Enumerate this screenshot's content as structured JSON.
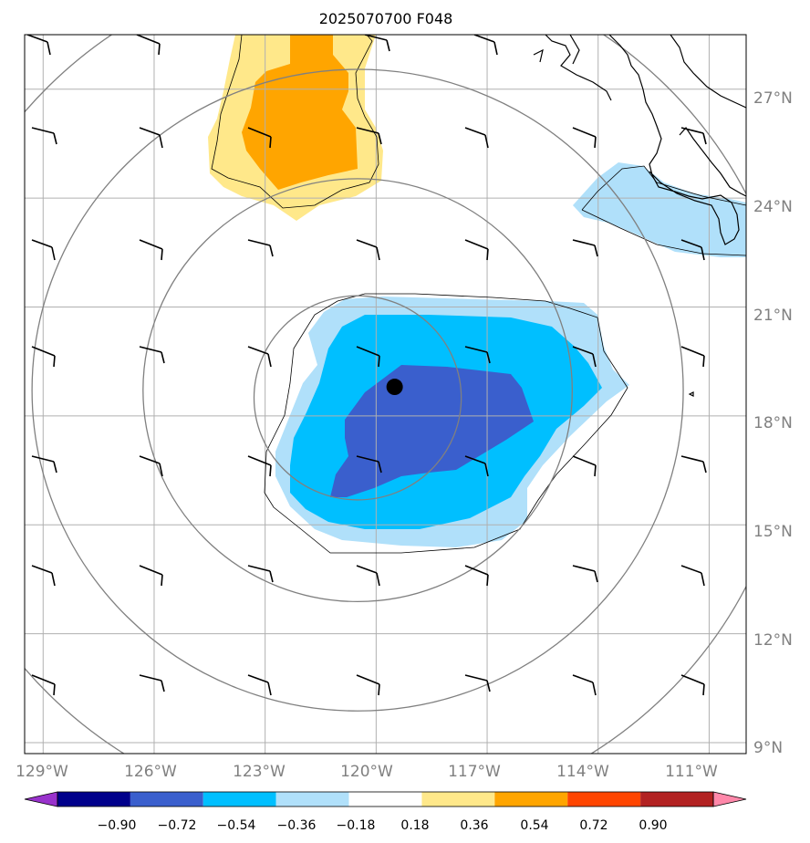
{
  "title": "2025070700 F048",
  "map": {
    "lon_range": [
      -129.5,
      -110.0
    ],
    "lat_range": [
      8.7,
      28.5
    ],
    "lat_ticks": [
      {
        "value": 9,
        "label": "9°N"
      },
      {
        "value": 12,
        "label": "12°N"
      },
      {
        "value": 15,
        "label": "15°N"
      },
      {
        "value": 18,
        "label": "18°N"
      },
      {
        "value": 21,
        "label": "21°N"
      },
      {
        "value": 24,
        "label": "24°N"
      },
      {
        "value": 27,
        "label": "27°N"
      }
    ],
    "lon_ticks": [
      {
        "value": -129,
        "label": "129°W"
      },
      {
        "value": -126,
        "label": "126°W"
      },
      {
        "value": -123,
        "label": "123°W"
      },
      {
        "value": -120,
        "label": "120°W"
      },
      {
        "value": -117,
        "label": "117°W"
      },
      {
        "value": -114,
        "label": "114°W"
      },
      {
        "value": -111,
        "label": "111°W"
      }
    ],
    "storm_center": {
      "lon": -119.5,
      "lat": 18.8
    },
    "range_rings_deg": [
      2.8,
      5.8,
      8.8,
      11.8
    ]
  },
  "colorbar": {
    "boundaries": [
      -0.9,
      -0.72,
      -0.54,
      -0.36,
      -0.18,
      0.18,
      0.36,
      0.54,
      0.72,
      0.9
    ],
    "labels": [
      "−0.90",
      "−0.72",
      "−0.54",
      "−0.36",
      "−0.18",
      "0.18",
      "0.36",
      "0.54",
      "0.72",
      "0.90"
    ],
    "colors": [
      "#9932cc",
      "#00008b",
      "#3a5fcd",
      "#00bfff",
      "#b0e0fa",
      "#ffffff",
      "#ffe88a",
      "#ffa500",
      "#ff4500",
      "#b22222",
      "#ff88aa"
    ]
  },
  "colors": {
    "grid": "#b0b0b0",
    "ring": "#808080",
    "axis_label": "#808080",
    "storm_marker": "#000000"
  }
}
